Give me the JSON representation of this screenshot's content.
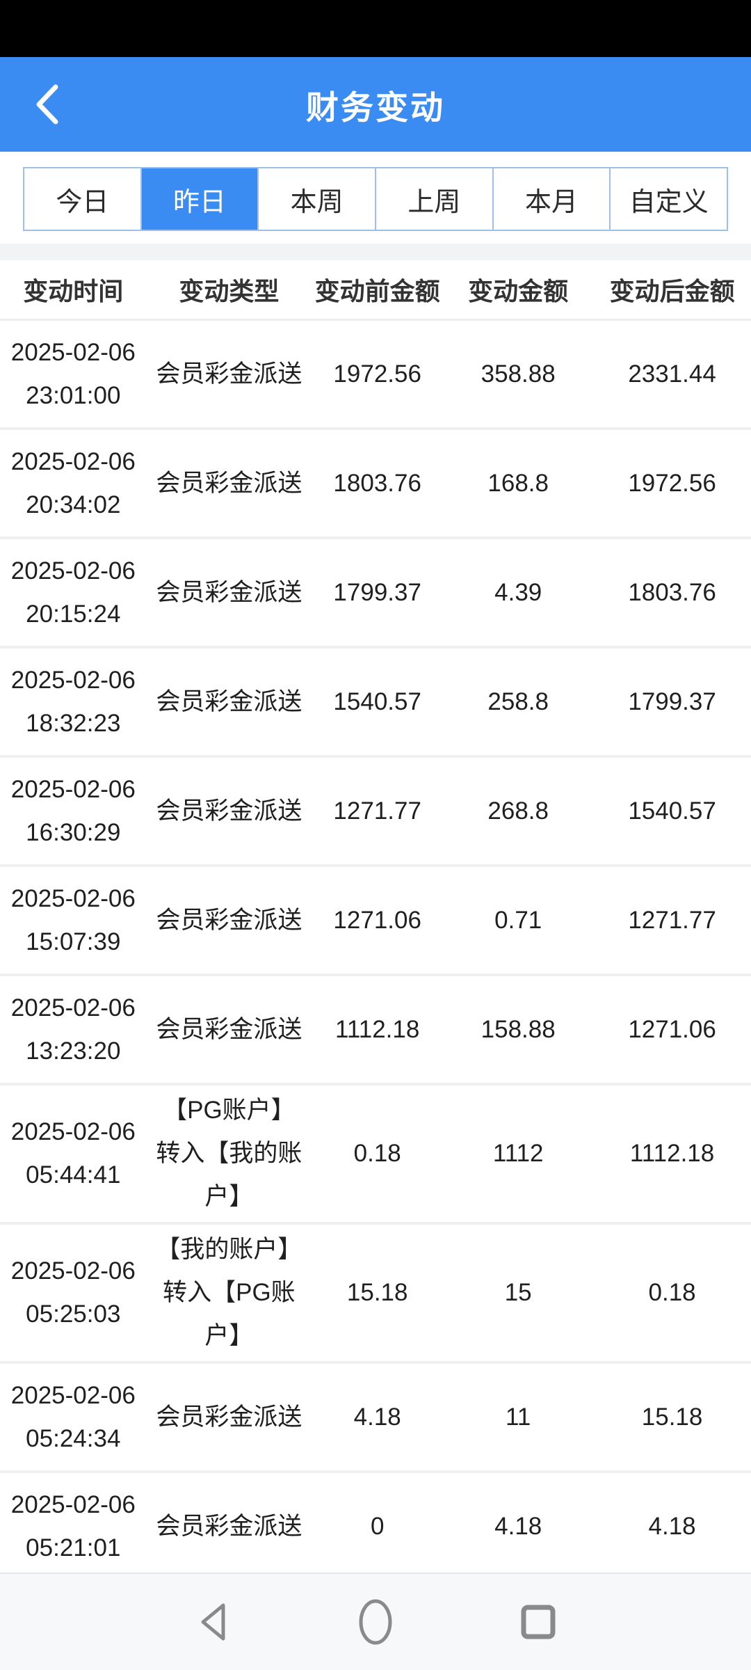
{
  "header": {
    "title": "财务变动"
  },
  "tabs": {
    "items": [
      {
        "key": "today",
        "label": "今日",
        "selected": false
      },
      {
        "key": "yesterday",
        "label": "昨日",
        "selected": true
      },
      {
        "key": "this-week",
        "label": "本周",
        "selected": false
      },
      {
        "key": "last-week",
        "label": "上周",
        "selected": false
      },
      {
        "key": "this-month",
        "label": "本月",
        "selected": false
      },
      {
        "key": "custom",
        "label": "自定义",
        "selected": false
      }
    ]
  },
  "table": {
    "columns": [
      "变动时间",
      "变动类型",
      "变动前金额",
      "变动金额",
      "变动后金额"
    ],
    "rows": [
      {
        "date": "2025-02-06",
        "time": "23:01:00",
        "type": "会员彩金派送",
        "before_amount": "1972.56",
        "change_amount": "358.88",
        "after_amount": "2331.44"
      },
      {
        "date": "2025-02-06",
        "time": "20:34:02",
        "type": "会员彩金派送",
        "before_amount": "1803.76",
        "change_amount": "168.8",
        "after_amount": "1972.56"
      },
      {
        "date": "2025-02-06",
        "time": "20:15:24",
        "type": "会员彩金派送",
        "before_amount": "1799.37",
        "change_amount": "4.39",
        "after_amount": "1803.76"
      },
      {
        "date": "2025-02-06",
        "time": "18:32:23",
        "type": "会员彩金派送",
        "before_amount": "1540.57",
        "change_amount": "258.8",
        "after_amount": "1799.37"
      },
      {
        "date": "2025-02-06",
        "time": "16:30:29",
        "type": "会员彩金派送",
        "before_amount": "1271.77",
        "change_amount": "268.8",
        "after_amount": "1540.57"
      },
      {
        "date": "2025-02-06",
        "time": "15:07:39",
        "type": "会员彩金派送",
        "before_amount": "1271.06",
        "change_amount": "0.71",
        "after_amount": "1271.77"
      },
      {
        "date": "2025-02-06",
        "time": "13:23:20",
        "type": "会员彩金派送",
        "before_amount": "1112.18",
        "change_amount": "158.88",
        "after_amount": "1271.06"
      },
      {
        "date": "2025-02-06",
        "time": "05:44:41",
        "type": "【PG账户】\n转入【我的账\n户】",
        "before_amount": "0.18",
        "change_amount": "1112",
        "after_amount": "1112.18"
      },
      {
        "date": "2025-02-06",
        "time": "05:25:03",
        "type": "【我的账户】\n转入【PG账\n户】",
        "before_amount": "15.18",
        "change_amount": "15",
        "after_amount": "0.18"
      },
      {
        "date": "2025-02-06",
        "time": "05:24:34",
        "type": "会员彩金派送",
        "before_amount": "4.18",
        "change_amount": "11",
        "after_amount": "15.18"
      },
      {
        "date": "2025-02-06",
        "time": "05:21:01",
        "type": "会员彩金派送",
        "before_amount": "0",
        "change_amount": "4.18",
        "after_amount": "4.18"
      }
    ]
  },
  "nav": {
    "icons": [
      "back-triangle-icon",
      "home-circle-icon",
      "recents-square-icon"
    ]
  },
  "colors": {
    "primary_blue": "#3b8cf2",
    "tab_border": "#9dbfe9",
    "separator": "#f0f0f0",
    "nav_bg": "#f7f8fa",
    "icon_gray": "#8a8a8a",
    "status_bar": "#000000",
    "text_dark": "#1f1f1f"
  }
}
